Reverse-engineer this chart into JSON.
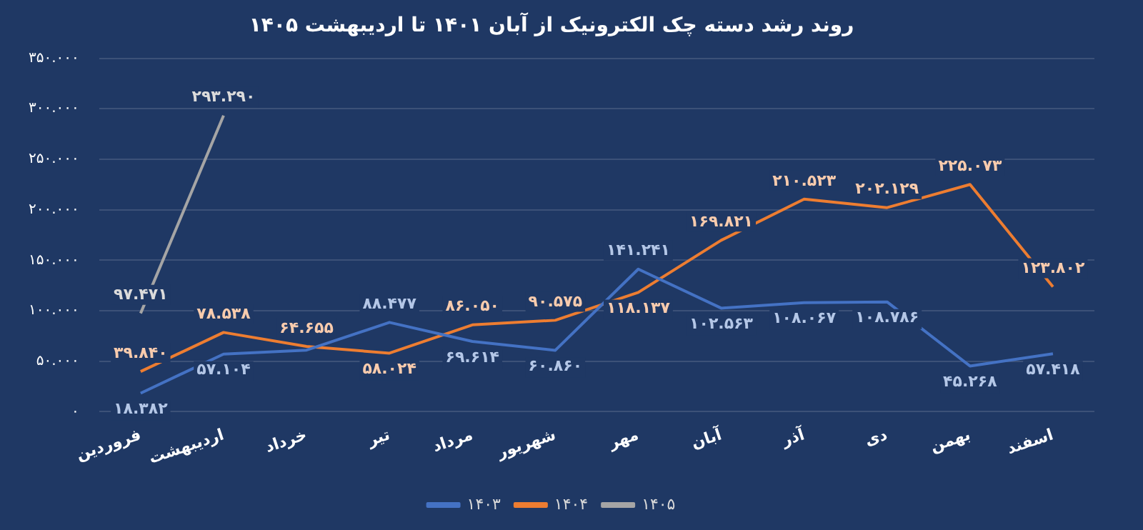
{
  "chart_data": {
    "type": "line",
    "title": "روند رشد دسته چک الکترونیک از آبان ۱۴۰۱ تا اردیبهشت ۱۴۰۵",
    "categories": [
      "فروردین",
      "اردیبهشت",
      "خرداد",
      "تیر",
      "مرداد",
      "شهریور",
      "مهر",
      "آبان",
      "آذر",
      "دی",
      "بهمن",
      "اسفند"
    ],
    "series": [
      {
        "name": "۱۴۰۳",
        "color": "#4472c4",
        "values": [
          18.382,
          57.104,
          61,
          88.477,
          69.614,
          60.86,
          141.241,
          102.563,
          108.067,
          108.786,
          45.268,
          57.418
        ],
        "value_labels": [
          "۱۸.۳۸۲",
          "۵۷.۱۰۴",
          null,
          "۸۸.۴۷۷",
          "۶۹.۶۱۴",
          "۶۰.۸۶۰",
          "۱۴۱.۲۴۱",
          "۱۰۲.۵۶۳",
          "۱۰۸.۰۶۷",
          "۱۰۸.۷۸۶",
          "۴۵.۲۶۸",
          "۵۷.۴۱۸"
        ]
      },
      {
        "name": "۱۴۰۴",
        "color": "#ed7d31",
        "values": [
          39.84,
          78.538,
          64.655,
          58.024,
          86.05,
          90.575,
          118.137,
          169.821,
          210.523,
          202.129,
          225.073,
          123.802
        ],
        "value_labels": [
          "۳۹.۸۴۰",
          "۷۸.۵۳۸",
          "۶۴.۶۵۵",
          "۵۸.۰۲۴",
          "۸۶.۰۵۰",
          "۹۰.۵۷۵",
          "۱۱۸.۱۳۷",
          "۱۶۹.۸۲۱",
          "۲۱۰.۵۲۳",
          "۲۰۲.۱۲۹",
          "۲۲۵.۰۷۳",
          "۱۲۳.۸۰۲"
        ]
      },
      {
        "name": "۱۴۰۵",
        "color": "#a5a5a5",
        "values": [
          97.471,
          293.29,
          null,
          null,
          null,
          null,
          null,
          null,
          null,
          null,
          null,
          null
        ],
        "value_labels": [
          "۹۷.۴۷۱",
          "۲۹۳.۲۹۰",
          null,
          null,
          null,
          null,
          null,
          null,
          null,
          null,
          null,
          null
        ]
      }
    ],
    "ylim": [
      0,
      350
    ],
    "yticks": [
      {
        "value": 0,
        "label": "۰"
      },
      {
        "value": 50,
        "label": "۵۰.۰۰۰"
      },
      {
        "value": 100,
        "label": "۱۰۰.۰۰۰"
      },
      {
        "value": 150,
        "label": "۱۵۰.۰۰۰"
      },
      {
        "value": 200,
        "label": "۲۰۰.۰۰۰"
      },
      {
        "value": 250,
        "label": "۲۵۰.۰۰۰"
      },
      {
        "value": 300,
        "label": "۳۰۰.۰۰۰"
      },
      {
        "value": 350,
        "label": "۳۵۰.۰۰۰"
      }
    ],
    "grid": "y",
    "legend": "bottom",
    "marker": "none",
    "line_style": "solid"
  }
}
